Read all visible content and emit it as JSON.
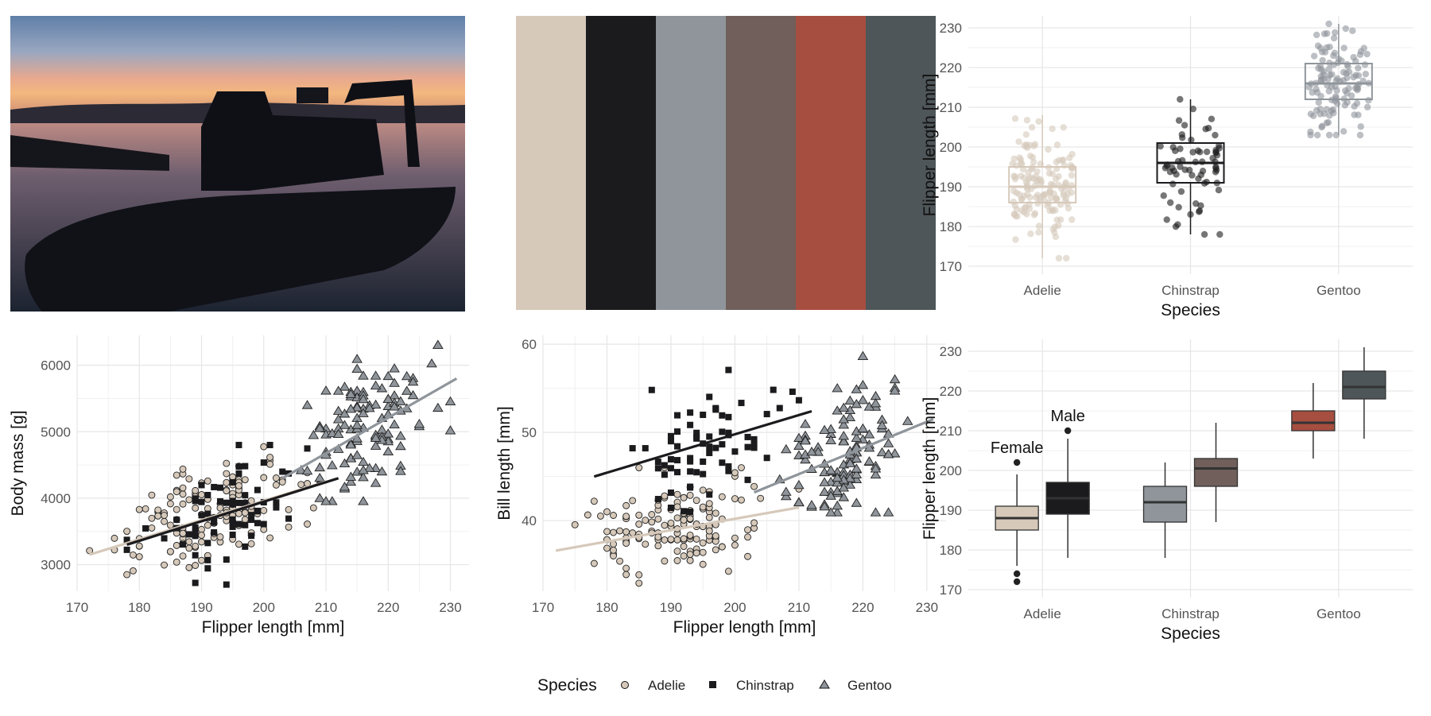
{
  "photo": {
    "subject": "boat silhouette at sunset on water"
  },
  "palette": {
    "colors": [
      "#d6c9ba",
      "#1b1a1d",
      "#8f959b",
      "#705f5b",
      "#a64e40",
      "#4f5659"
    ]
  },
  "legend": {
    "title": "Species",
    "items": [
      {
        "label": "Adelie",
        "shape": "circle",
        "color": "#d6c9ba"
      },
      {
        "label": "Chinstrap",
        "shape": "square",
        "color": "#1b1a1d"
      },
      {
        "label": "Gentoo",
        "shape": "triangle",
        "color": "#8f959b"
      }
    ]
  },
  "chart_data": [
    {
      "id": "boxplot-species",
      "type": "boxplot",
      "xlabel": "Species",
      "ylabel": "Flipper length [mm]",
      "categories": [
        "Adelie",
        "Chinstrap",
        "Gentoo"
      ],
      "ylim": [
        168,
        233
      ],
      "yticks": [
        170,
        180,
        190,
        200,
        210,
        220,
        230
      ],
      "grid": true,
      "series": [
        {
          "name": "Adelie",
          "color": "#d6c9ba",
          "q1": 186,
          "median": 190,
          "q3": 195,
          "whisker_low": 172,
          "whisker_high": 208,
          "jitter_n": 150
        },
        {
          "name": "Chinstrap",
          "color": "#1b1a1d",
          "q1": 191,
          "median": 196,
          "q3": 201,
          "whisker_low": 178,
          "whisker_high": 212,
          "jitter_n": 68
        },
        {
          "name": "Gentoo",
          "color": "#8f959b",
          "q1": 212,
          "median": 216,
          "q3": 221,
          "whisker_low": 203,
          "whisker_high": 231,
          "jitter_n": 120
        }
      ]
    },
    {
      "id": "scatter-body-mass",
      "type": "scatter",
      "xlabel": "Flipper length [mm]",
      "ylabel": "Body mass [g]",
      "xlim": [
        170,
        233
      ],
      "ylim": [
        2600,
        6450
      ],
      "xticks": [
        170,
        180,
        190,
        200,
        210,
        220,
        230
      ],
      "yticks": [
        3000,
        4000,
        5000,
        6000
      ],
      "grid": true,
      "series": [
        {
          "name": "Adelie",
          "n": 150,
          "x_range": [
            172,
            210
          ],
          "y_range": [
            2850,
            4775
          ],
          "trend": [
            [
              172,
              3150
            ],
            [
              210,
              4250
            ]
          ]
        },
        {
          "name": "Chinstrap",
          "n": 68,
          "x_range": [
            178,
            212
          ],
          "y_range": [
            2700,
            4800
          ],
          "trend": [
            [
              178,
              3300
            ],
            [
              212,
              4300
            ]
          ]
        },
        {
          "name": "Gentoo",
          "n": 120,
          "x_range": [
            203,
            231
          ],
          "y_range": [
            3950,
            6300
          ],
          "trend": [
            [
              203,
              4300
            ],
            [
              231,
              5800
            ]
          ]
        }
      ]
    },
    {
      "id": "scatter-bill-length",
      "type": "scatter",
      "xlabel": "Flipper length [mm]",
      "ylabel": "Bill length [mm]",
      "xlim": [
        170,
        233
      ],
      "ylim": [
        32,
        61
      ],
      "xticks": [
        170,
        180,
        190,
        200,
        210,
        220,
        230
      ],
      "yticks": [
        40,
        50,
        60
      ],
      "grid": true,
      "series": [
        {
          "name": "Adelie",
          "n": 150,
          "x_range": [
            172,
            210
          ],
          "y_range": [
            32.5,
            46
          ],
          "trend": [
            [
              172,
              36.6
            ],
            [
              210,
              41.5
            ]
          ]
        },
        {
          "name": "Chinstrap",
          "n": 68,
          "x_range": [
            178,
            212
          ],
          "y_range": [
            41,
            58
          ],
          "trend": [
            [
              178,
              45
            ],
            [
              212,
              52.4
            ]
          ]
        },
        {
          "name": "Gentoo",
          "n": 120,
          "x_range": [
            203,
            231
          ],
          "y_range": [
            40.9,
            59.6
          ],
          "trend": [
            [
              203,
              43.2
            ],
            [
              231,
              51.5
            ]
          ]
        }
      ]
    },
    {
      "id": "boxplot-sex",
      "type": "boxplot",
      "xlabel": "Species",
      "ylabel": "Flipper length [mm]",
      "categories": [
        "Adelie",
        "Chinstrap",
        "Gentoo"
      ],
      "ylim": [
        168,
        233
      ],
      "yticks": [
        170,
        180,
        190,
        200,
        210,
        220,
        230
      ],
      "grid": true,
      "annotations": [
        {
          "text": "Female",
          "category": "Adelie",
          "group": "Female",
          "y": 204
        },
        {
          "text": "Male",
          "category": "Adelie",
          "group": "Male",
          "y": 212
        }
      ],
      "series": [
        {
          "category": "Adelie",
          "group": "Female",
          "color": "#d6c9ba",
          "q1": 185,
          "median": 188,
          "q3": 191,
          "whisker_low": 176,
          "whisker_high": 199,
          "outliers": [
            174,
            172,
            202
          ]
        },
        {
          "category": "Adelie",
          "group": "Male",
          "color": "#1b1a1d",
          "q1": 189,
          "median": 193,
          "q3": 197,
          "whisker_low": 178,
          "whisker_high": 208,
          "outliers": [
            210
          ]
        },
        {
          "category": "Chinstrap",
          "group": "Female",
          "color": "#8f959b",
          "q1": 187,
          "median": 192,
          "q3": 196,
          "whisker_low": 178,
          "whisker_high": 202,
          "outliers": []
        },
        {
          "category": "Chinstrap",
          "group": "Male",
          "color": "#705f5b",
          "q1": 196,
          "median": 200.5,
          "q3": 203,
          "whisker_low": 187,
          "whisker_high": 212,
          "outliers": []
        },
        {
          "category": "Gentoo",
          "group": "Female",
          "color": "#a64e40",
          "q1": 210,
          "median": 212,
          "q3": 215,
          "whisker_low": 203,
          "whisker_high": 222,
          "outliers": []
        },
        {
          "category": "Gentoo",
          "group": "Male",
          "color": "#4f5659",
          "q1": 218,
          "median": 221,
          "q3": 225,
          "whisker_low": 208,
          "whisker_high": 231,
          "outliers": []
        }
      ]
    }
  ]
}
